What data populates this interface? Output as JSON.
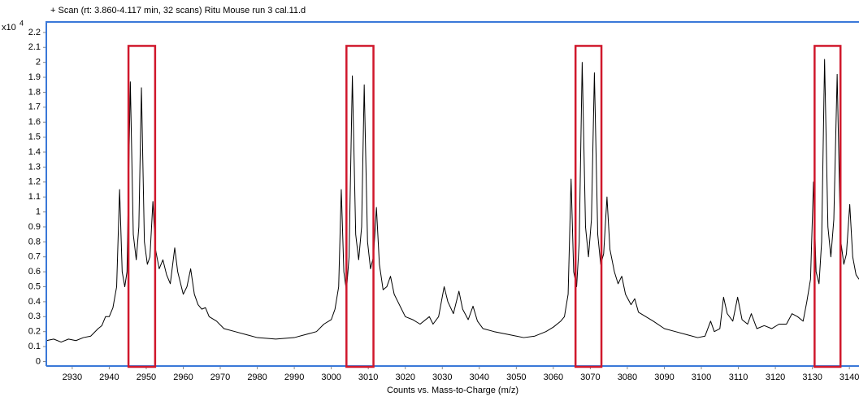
{
  "chart_data": {
    "type": "line",
    "title": "+ Scan (rt: 3.860-4.117 min, 32 scans) Ritu Mouse run 3 cal.11.d",
    "x_label": "Counts vs. Mass-to-Charge (m/z)",
    "y_multiplier": {
      "base": "x10",
      "exponent": "4"
    },
    "x": [
      2923,
      2925,
      2927,
      2929,
      2931,
      2933,
      2935,
      2937,
      2938,
      2939,
      2940,
      2941,
      2942,
      2942.8,
      2943.5,
      2944.2,
      2944.8,
      2945.7,
      2946.5,
      2947.3,
      2948,
      2948.7,
      2949.5,
      2950.3,
      2951,
      2951.8,
      2952.5,
      2953.5,
      2954.5,
      2955.5,
      2956.5,
      2957.7,
      2958.5,
      2960,
      2961,
      2962,
      2963,
      2964,
      2965,
      2966,
      2967,
      2969,
      2971,
      2974,
      2977,
      2980,
      2985,
      2990,
      2993,
      2996,
      2998,
      3000,
      3001,
      3002,
      3002.7,
      3003.4,
      3004.1,
      3004.8,
      3005.7,
      3006.6,
      3007.4,
      3008.2,
      3008.9,
      3009.8,
      3010.6,
      3011.4,
      3012.2,
      3013,
      3014,
      3015,
      3016,
      3017,
      3018,
      3019,
      3020,
      3022,
      3024,
      3026.5,
      3027.5,
      3029,
      3030.5,
      3031.5,
      3033,
      3034.5,
      3035.5,
      3037,
      3038.3,
      3039.5,
      3041,
      3044,
      3048,
      3052,
      3055,
      3058,
      3060,
      3062,
      3063,
      3064,
      3064.8,
      3065.5,
      3066.3,
      3067,
      3067.8,
      3068.7,
      3069.5,
      3070.3,
      3071.1,
      3072,
      3072.8,
      3073.6,
      3074.5,
      3075.3,
      3076.5,
      3077.5,
      3078.5,
      3079.5,
      3081,
      3082,
      3083,
      3085,
      3087,
      3090,
      3093,
      3096,
      3099,
      3101,
      3102.5,
      3103.5,
      3105,
      3106,
      3107,
      3108.5,
      3109.8,
      3111,
      3112.5,
      3113.5,
      3115,
      3117,
      3119,
      3121,
      3123,
      3124.5,
      3126,
      3127.5,
      3128.5,
      3129.5,
      3130.3,
      3131,
      3131.8,
      3132.5,
      3133.3,
      3134.2,
      3135,
      3135.8,
      3136.7,
      3137.6,
      3138.5,
      3139.2,
      3140.1,
      3140.9,
      3141.8,
      3142.6
    ],
    "series": [
      {
        "color": "#000000",
        "values": [
          0.14,
          0.15,
          0.13,
          0.15,
          0.14,
          0.16,
          0.17,
          0.22,
          0.24,
          0.3,
          0.3,
          0.36,
          0.5,
          1.15,
          0.6,
          0.5,
          0.6,
          1.87,
          0.85,
          0.68,
          0.9,
          1.83,
          0.8,
          0.65,
          0.7,
          1.07,
          0.75,
          0.62,
          0.68,
          0.58,
          0.52,
          0.76,
          0.6,
          0.45,
          0.5,
          0.62,
          0.45,
          0.38,
          0.35,
          0.36,
          0.3,
          0.27,
          0.22,
          0.2,
          0.18,
          0.16,
          0.15,
          0.16,
          0.18,
          0.2,
          0.25,
          0.28,
          0.35,
          0.5,
          1.15,
          0.6,
          0.47,
          0.7,
          1.91,
          0.85,
          0.68,
          0.9,
          1.85,
          0.8,
          0.62,
          0.7,
          1.03,
          0.65,
          0.48,
          0.5,
          0.57,
          0.45,
          0.4,
          0.35,
          0.3,
          0.28,
          0.25,
          0.3,
          0.25,
          0.3,
          0.5,
          0.4,
          0.32,
          0.47,
          0.35,
          0.28,
          0.37,
          0.27,
          0.22,
          0.2,
          0.18,
          0.16,
          0.17,
          0.2,
          0.23,
          0.27,
          0.3,
          0.45,
          1.22,
          0.6,
          0.5,
          0.8,
          2.0,
          0.9,
          0.7,
          0.95,
          1.93,
          0.85,
          0.65,
          0.72,
          1.1,
          0.75,
          0.6,
          0.52,
          0.57,
          0.45,
          0.38,
          0.42,
          0.33,
          0.3,
          0.27,
          0.22,
          0.2,
          0.18,
          0.16,
          0.17,
          0.27,
          0.2,
          0.22,
          0.43,
          0.32,
          0.27,
          0.43,
          0.28,
          0.25,
          0.32,
          0.22,
          0.24,
          0.22,
          0.25,
          0.25,
          0.32,
          0.3,
          0.27,
          0.4,
          0.55,
          1.2,
          0.6,
          0.52,
          0.8,
          2.02,
          0.9,
          0.7,
          0.95,
          1.92,
          0.82,
          0.65,
          0.72,
          1.05,
          0.7,
          0.58,
          0.55
        ]
      }
    ],
    "xlim": [
      2923,
      3142.6
    ],
    "ylim": [
      -0.03,
      2.27
    ],
    "xticks": [
      2930,
      2940,
      2950,
      2960,
      2970,
      2980,
      2990,
      3000,
      3010,
      3020,
      3030,
      3040,
      3050,
      3060,
      3070,
      3080,
      3090,
      3100,
      3110,
      3120,
      3130,
      3140
    ],
    "yticks": [
      0,
      0.1,
      0.2,
      0.3,
      0.4,
      0.5,
      0.6,
      0.7,
      0.8,
      0.9,
      1,
      1.1,
      1.2,
      1.3,
      1.4,
      1.5,
      1.6,
      1.7,
      1.8,
      1.9,
      2,
      2.1,
      2.2
    ],
    "frame_color": "#3a78d8",
    "highlight_color": "#d0182c",
    "highlights": [
      {
        "x": [
          2945.2,
          2952.4
        ],
        "top": 2.11
      },
      {
        "x": [
          3004.1,
          3011.4
        ],
        "top": 2.11
      },
      {
        "x": [
          3066.0,
          3073.0
        ],
        "top": 2.11
      },
      {
        "x": [
          3130.6,
          3137.6
        ],
        "top": 2.11
      }
    ]
  }
}
